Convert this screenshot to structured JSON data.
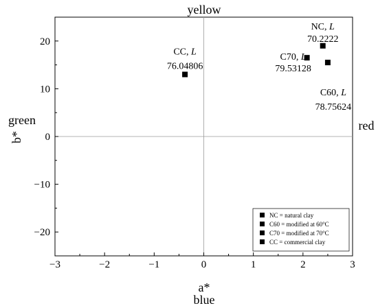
{
  "chart_data": {
    "type": "scatter",
    "xlabel": "a*",
    "ylabel": "b*",
    "xlim": [
      -3,
      3
    ],
    "ylim": [
      -25,
      25
    ],
    "x_ticks": [
      -3,
      -2,
      -1,
      0,
      1,
      2,
      3
    ],
    "y_ticks": [
      -20,
      -10,
      0,
      10,
      20
    ],
    "tick_labels_x": [
      "−3",
      "−2",
      "−1",
      "0",
      "1",
      "2",
      "3"
    ],
    "tick_labels_y": [
      "−20",
      "−10",
      "0",
      "10",
      "20"
    ],
    "direction_labels": {
      "top": "yellow",
      "bottom": "blue",
      "left": "green",
      "right": "red"
    },
    "marker_color": "#000000",
    "points": [
      {
        "id": "NC",
        "x": 2.4,
        "y": 19.0,
        "label_prefix": "NC, ",
        "label_var": "L",
        "label_value": "70.2222"
      },
      {
        "id": "C60",
        "x": 2.5,
        "y": 15.5,
        "label_prefix": "C60, ",
        "label_var": "L",
        "label_value": "78.75624"
      },
      {
        "id": "C70",
        "x": 2.08,
        "y": 16.5,
        "label_prefix": "C70, ",
        "label_var": "L",
        "label_value": "79.53128"
      },
      {
        "id": "CC",
        "x": -0.38,
        "y": 13.0,
        "label_prefix": "CC, ",
        "label_var": "L",
        "label_value": "76.04806"
      }
    ],
    "legend": {
      "position": "bottom-right",
      "items": [
        "NC = natural clay",
        "C60 = modified at 60°C",
        "C70 = modified at 70°C",
        "CC = commercial clay"
      ]
    }
  }
}
